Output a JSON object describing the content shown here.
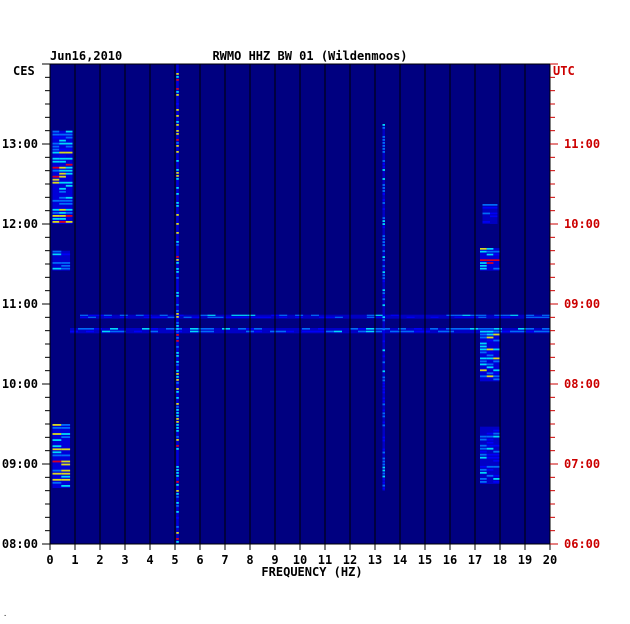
{
  "header": {
    "date": "Jun16,2010",
    "title": "RWMO HHZ BW 01 (Wildenmoos)"
  },
  "colors": {
    "background": "#000080",
    "left_label": "#000000",
    "right_label": "#cc0000",
    "gridline": "#000000"
  },
  "chart_data": {
    "type": "heatmap",
    "title": "RWMO HHZ BW 01 (Wildenmoos)",
    "date": "Jun16,2010",
    "xlabel": "FREQUENCY (HZ)",
    "xlim": [
      0,
      20
    ],
    "x_ticks": [
      "0",
      "1",
      "2",
      "3",
      "4",
      "5",
      "6",
      "7",
      "8",
      "9",
      "10",
      "11",
      "12",
      "13",
      "14",
      "15",
      "16",
      "17",
      "18",
      "19",
      "20"
    ],
    "left_axis": {
      "label": "CES",
      "ticks": [
        "13:00",
        "12:00",
        "11:00",
        "10:00",
        "09:00",
        "08:00"
      ],
      "range": [
        "14:00",
        "08:00"
      ]
    },
    "right_axis": {
      "label": "UTC",
      "ticks": [
        "11:00",
        "10:00",
        "09:00",
        "08:00",
        "07:00",
        "06:00"
      ],
      "range": [
        "12:00",
        "06:00"
      ]
    },
    "colormap": [
      "#00008b",
      "#0000ff",
      "#0080ff",
      "#00ffff",
      "#ffff00",
      "#ff0000"
    ],
    "grid": true,
    "features": [
      {
        "freq": [
          0.1,
          0.9
        ],
        "time": [
          "13:10",
          "12:00"
        ],
        "intensity": 0.85
      },
      {
        "freq": [
          0.1,
          0.8
        ],
        "time": [
          "11:40",
          "11:25"
        ],
        "intensity": 0.6
      },
      {
        "freq": [
          0.1,
          0.8
        ],
        "time": [
          "09:30",
          "08:42"
        ],
        "intensity": 0.85
      },
      {
        "freq": [
          1.2,
          20
        ],
        "time": [
          "10:52",
          "10:49"
        ],
        "intensity": 0.45
      },
      {
        "freq": [
          0.8,
          20
        ],
        "time": [
          "10:42",
          "10:38"
        ],
        "intensity": 0.5
      },
      {
        "freq": [
          17.2,
          18.0
        ],
        "time": [
          "10:40",
          "10:02"
        ],
        "intensity": 0.8
      },
      {
        "freq": [
          17.2,
          18.0
        ],
        "time": [
          "11:42",
          "11:25"
        ],
        "intensity": 0.8
      },
      {
        "freq": [
          17.2,
          18.0
        ],
        "time": [
          "09:28",
          "08:45"
        ],
        "intensity": 0.5
      },
      {
        "freq": [
          17.3,
          17.9
        ],
        "time": [
          "12:15",
          "12:00"
        ],
        "intensity": 0.35
      },
      {
        "freq": [
          5.05,
          5.15
        ],
        "time": [
          "14:00",
          "08:00"
        ],
        "intensity": 0.9
      },
      {
        "freq": [
          13.3,
          13.4
        ],
        "time": [
          "13:15",
          "08:40"
        ],
        "intensity": 0.5
      }
    ]
  }
}
